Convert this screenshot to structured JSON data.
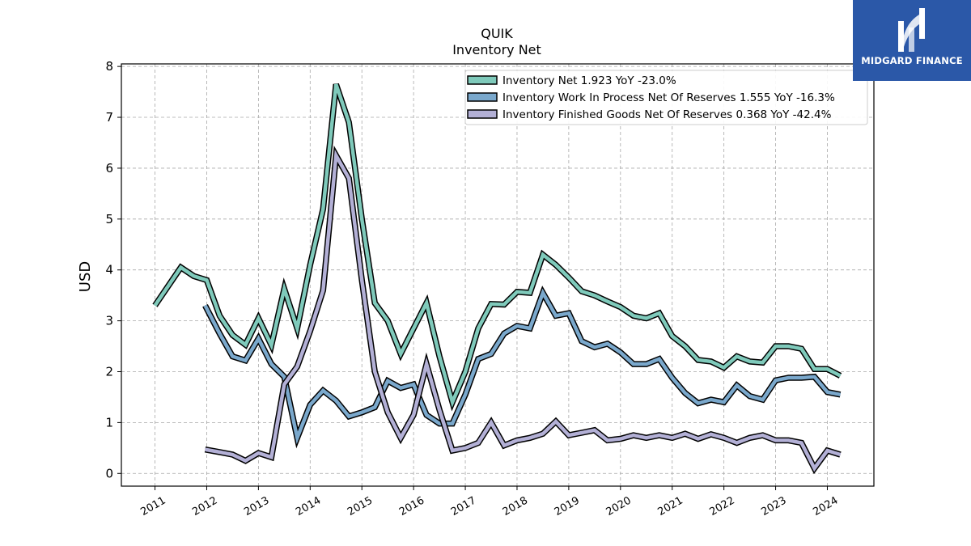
{
  "brand": {
    "name": "MIDGARD FINANCE",
    "color": "#2b58a8"
  },
  "chart_data": {
    "type": "line",
    "title": "QUIK",
    "subtitle": "Inventory Net",
    "xlabel": "",
    "ylabel": "USD",
    "ylim": [
      -0.25,
      8.05
    ],
    "xlim": [
      2010.35,
      2024.9
    ],
    "yticks": [
      0,
      1,
      2,
      3,
      4,
      5,
      6,
      7,
      8
    ],
    "xticks": [
      "2011",
      "2012",
      "2013",
      "2014",
      "2015",
      "2016",
      "2017",
      "2018",
      "2019",
      "2020",
      "2021",
      "2022",
      "2023",
      "2024"
    ],
    "grid": true,
    "legend_position": "top-right",
    "series": [
      {
        "name": "Inventory Net",
        "label": "Inventory Net  1.923 YoY -23.0%",
        "color": "#7fcabb",
        "points": [
          [
            2011.0,
            3.3
          ],
          [
            2011.5,
            4.05
          ],
          [
            2011.75,
            3.88
          ],
          [
            2012.0,
            3.8
          ],
          [
            2012.25,
            3.1
          ],
          [
            2012.5,
            2.72
          ],
          [
            2012.75,
            2.53
          ],
          [
            2013.0,
            3.05
          ],
          [
            2013.25,
            2.52
          ],
          [
            2013.5,
            3.63
          ],
          [
            2013.75,
            2.85
          ],
          [
            2014.0,
            4.1
          ],
          [
            2014.25,
            5.2
          ],
          [
            2014.5,
            7.65
          ],
          [
            2014.75,
            6.9
          ],
          [
            2015.0,
            5.0
          ],
          [
            2015.25,
            3.35
          ],
          [
            2015.5,
            3.0
          ],
          [
            2015.75,
            2.35
          ],
          [
            2016.0,
            2.85
          ],
          [
            2016.25,
            3.35
          ],
          [
            2016.5,
            2.3
          ],
          [
            2016.75,
            1.4
          ],
          [
            2017.0,
            2.0
          ],
          [
            2017.25,
            2.85
          ],
          [
            2017.5,
            3.33
          ],
          [
            2017.75,
            3.32
          ],
          [
            2018.0,
            3.57
          ],
          [
            2018.25,
            3.55
          ],
          [
            2018.5,
            4.3
          ],
          [
            2018.75,
            4.1
          ],
          [
            2019.0,
            3.85
          ],
          [
            2019.25,
            3.58
          ],
          [
            2019.5,
            3.5
          ],
          [
            2019.75,
            3.38
          ],
          [
            2020.0,
            3.27
          ],
          [
            2020.25,
            3.1
          ],
          [
            2020.5,
            3.05
          ],
          [
            2020.75,
            3.15
          ],
          [
            2021.0,
            2.7
          ],
          [
            2021.25,
            2.5
          ],
          [
            2021.5,
            2.23
          ],
          [
            2021.75,
            2.2
          ],
          [
            2022.0,
            2.08
          ],
          [
            2022.25,
            2.3
          ],
          [
            2022.5,
            2.2
          ],
          [
            2022.75,
            2.18
          ],
          [
            2023.0,
            2.5
          ],
          [
            2023.25,
            2.5
          ],
          [
            2023.5,
            2.45
          ],
          [
            2023.75,
            2.05
          ],
          [
            2024.0,
            2.05
          ],
          [
            2024.25,
            1.92
          ]
        ]
      },
      {
        "name": "Inventory Work In Process Net Of Reserves",
        "label": "Inventory Work In Process Net Of Reserves  1.555 YoY -16.3%",
        "color": "#7aa8cc",
        "points": [
          [
            2011.97,
            3.3
          ],
          [
            2012.25,
            2.75
          ],
          [
            2012.5,
            2.3
          ],
          [
            2012.75,
            2.22
          ],
          [
            2013.0,
            2.65
          ],
          [
            2013.25,
            2.15
          ],
          [
            2013.5,
            1.9
          ],
          [
            2013.75,
            0.7
          ],
          [
            2014.0,
            1.35
          ],
          [
            2014.25,
            1.63
          ],
          [
            2014.5,
            1.43
          ],
          [
            2014.75,
            1.12
          ],
          [
            2015.0,
            1.2
          ],
          [
            2015.25,
            1.3
          ],
          [
            2015.5,
            1.82
          ],
          [
            2015.75,
            1.68
          ],
          [
            2016.0,
            1.75
          ],
          [
            2016.25,
            1.15
          ],
          [
            2016.5,
            0.98
          ],
          [
            2016.75,
            0.98
          ],
          [
            2017.0,
            1.55
          ],
          [
            2017.25,
            2.25
          ],
          [
            2017.5,
            2.35
          ],
          [
            2017.75,
            2.75
          ],
          [
            2018.0,
            2.9
          ],
          [
            2018.25,
            2.85
          ],
          [
            2018.5,
            3.55
          ],
          [
            2018.75,
            3.1
          ],
          [
            2019.0,
            3.15
          ],
          [
            2019.25,
            2.6
          ],
          [
            2019.5,
            2.48
          ],
          [
            2019.75,
            2.55
          ],
          [
            2020.0,
            2.38
          ],
          [
            2020.25,
            2.15
          ],
          [
            2020.5,
            2.15
          ],
          [
            2020.75,
            2.25
          ],
          [
            2021.0,
            1.88
          ],
          [
            2021.25,
            1.58
          ],
          [
            2021.5,
            1.38
          ],
          [
            2021.75,
            1.45
          ],
          [
            2022.0,
            1.4
          ],
          [
            2022.25,
            1.73
          ],
          [
            2022.5,
            1.52
          ],
          [
            2022.75,
            1.45
          ],
          [
            2023.0,
            1.83
          ],
          [
            2023.25,
            1.88
          ],
          [
            2023.5,
            1.88
          ],
          [
            2023.75,
            1.9
          ],
          [
            2024.0,
            1.6
          ],
          [
            2024.25,
            1.55
          ]
        ]
      },
      {
        "name": "Inventory Finished Goods Net Of Reserves",
        "label": "Inventory Finished Goods Net Of Reserves  0.368 YoY -42.4%",
        "color": "#b3b0d6",
        "points": [
          [
            2011.97,
            0.47
          ],
          [
            2012.25,
            0.42
          ],
          [
            2012.5,
            0.37
          ],
          [
            2012.75,
            0.25
          ],
          [
            2013.0,
            0.4
          ],
          [
            2013.25,
            0.32
          ],
          [
            2013.5,
            1.75
          ],
          [
            2013.75,
            2.1
          ],
          [
            2014.0,
            2.8
          ],
          [
            2014.25,
            3.6
          ],
          [
            2014.5,
            6.25
          ],
          [
            2014.75,
            5.8
          ],
          [
            2015.0,
            3.8
          ],
          [
            2015.25,
            2.0
          ],
          [
            2015.5,
            1.2
          ],
          [
            2015.75,
            0.7
          ],
          [
            2016.0,
            1.15
          ],
          [
            2016.25,
            2.15
          ],
          [
            2016.5,
            1.25
          ],
          [
            2016.75,
            0.45
          ],
          [
            2017.0,
            0.5
          ],
          [
            2017.25,
            0.6
          ],
          [
            2017.5,
            1.0
          ],
          [
            2017.75,
            0.55
          ],
          [
            2018.0,
            0.65
          ],
          [
            2018.25,
            0.7
          ],
          [
            2018.5,
            0.78
          ],
          [
            2018.75,
            1.02
          ],
          [
            2019.0,
            0.75
          ],
          [
            2019.25,
            0.8
          ],
          [
            2019.5,
            0.85
          ],
          [
            2019.75,
            0.65
          ],
          [
            2020.0,
            0.68
          ],
          [
            2020.25,
            0.75
          ],
          [
            2020.5,
            0.7
          ],
          [
            2020.75,
            0.75
          ],
          [
            2021.0,
            0.7
          ],
          [
            2021.25,
            0.78
          ],
          [
            2021.5,
            0.68
          ],
          [
            2021.75,
            0.77
          ],
          [
            2022.0,
            0.7
          ],
          [
            2022.25,
            0.6
          ],
          [
            2022.5,
            0.7
          ],
          [
            2022.75,
            0.75
          ],
          [
            2023.0,
            0.65
          ],
          [
            2023.25,
            0.65
          ],
          [
            2023.5,
            0.6
          ],
          [
            2023.75,
            0.1
          ],
          [
            2024.0,
            0.45
          ],
          [
            2024.25,
            0.37
          ]
        ]
      }
    ]
  }
}
